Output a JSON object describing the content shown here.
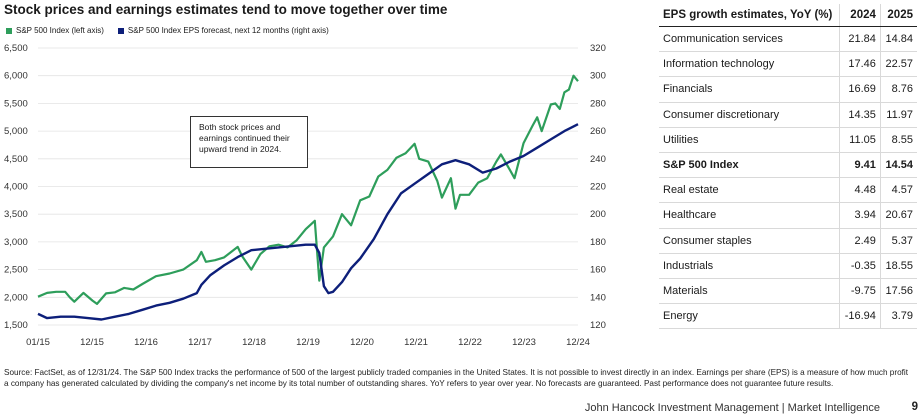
{
  "chart_title": "Stock prices and earnings estimates tend to move together over time",
  "annotation": "Both stock prices and earnings continued their upward trend in 2024.",
  "chart_data": {
    "type": "line",
    "title": "Stock prices and earnings estimates tend to move together over time",
    "x_ticks": [
      "01/15",
      "12/15",
      "12/16",
      "12/17",
      "12/18",
      "12/19",
      "12/20",
      "12/21",
      "12/22",
      "12/23",
      "12/24"
    ],
    "x_range": [
      "2015-01",
      "2024-12"
    ],
    "left_axis": {
      "ticks": [
        "1,500",
        "2,000",
        "2,500",
        "3,000",
        "3,500",
        "4,000",
        "4,500",
        "5,000",
        "5,500",
        "6,000",
        "6,500"
      ],
      "ylim": [
        1500,
        6500
      ]
    },
    "right_axis": {
      "ticks": [
        "120",
        "140",
        "160",
        "180",
        "200",
        "220",
        "240",
        "260",
        "280",
        "300",
        "320"
      ],
      "ylim": [
        120,
        320
      ]
    },
    "legend_position": "top-left",
    "grid": "horizontal",
    "series": [
      {
        "name": "S&P 500 Index (left axis)",
        "axis": "left",
        "color": "#2e9e5b",
        "x": [
          "2015-01",
          "2015-03",
          "2015-05",
          "2015-07",
          "2015-08",
          "2015-09",
          "2015-11",
          "2016-01",
          "2016-02",
          "2016-04",
          "2016-06",
          "2016-08",
          "2016-10",
          "2016-12",
          "2017-03",
          "2017-06",
          "2017-09",
          "2017-12",
          "2018-01",
          "2018-02",
          "2018-04",
          "2018-06",
          "2018-09",
          "2018-10",
          "2018-12",
          "2019-02",
          "2019-04",
          "2019-06",
          "2019-08",
          "2019-10",
          "2019-12",
          "2020-02",
          "2020-03",
          "2020-04",
          "2020-06",
          "2020-08",
          "2020-10",
          "2020-12",
          "2021-02",
          "2021-04",
          "2021-06",
          "2021-08",
          "2021-10",
          "2021-12",
          "2022-01",
          "2022-03",
          "2022-05",
          "2022-06",
          "2022-08",
          "2022-09",
          "2022-10",
          "2022-12",
          "2023-02",
          "2023-04",
          "2023-06",
          "2023-07",
          "2023-09",
          "2023-10",
          "2023-12",
          "2024-02",
          "2024-03",
          "2024-04",
          "2024-06",
          "2024-07",
          "2024-08",
          "2024-09",
          "2024-10",
          "2024-11",
          "2024-12"
        ],
        "values": [
          2010,
          2080,
          2100,
          2100,
          2000,
          1920,
          2080,
          1940,
          1880,
          2070,
          2090,
          2170,
          2140,
          2240,
          2380,
          2430,
          2500,
          2670,
          2820,
          2640,
          2670,
          2720,
          2910,
          2740,
          2500,
          2780,
          2920,
          2950,
          2900,
          3030,
          3230,
          3380,
          2300,
          2900,
          3100,
          3500,
          3300,
          3750,
          3820,
          4180,
          4300,
          4520,
          4600,
          4770,
          4500,
          4450,
          4100,
          3800,
          4150,
          3600,
          3850,
          3850,
          4070,
          4150,
          4450,
          4580,
          4300,
          4150,
          4780,
          5100,
          5250,
          5000,
          5480,
          5500,
          5400,
          5700,
          5750,
          6000,
          5900
        ]
      },
      {
        "name": "S&P 500 Index EPS forecast, next 12 months (right axis)",
        "axis": "right",
        "color": "#0d1f7a",
        "x": [
          "2015-01",
          "2015-03",
          "2015-06",
          "2015-09",
          "2015-12",
          "2016-03",
          "2016-06",
          "2016-09",
          "2016-12",
          "2017-03",
          "2017-06",
          "2017-09",
          "2017-12",
          "2018-01",
          "2018-03",
          "2018-06",
          "2018-09",
          "2018-12",
          "2019-03",
          "2019-06",
          "2019-09",
          "2019-12",
          "2020-02",
          "2020-03",
          "2020-04",
          "2020-05",
          "2020-06",
          "2020-08",
          "2020-10",
          "2020-12",
          "2021-03",
          "2021-06",
          "2021-09",
          "2021-12",
          "2022-03",
          "2022-06",
          "2022-09",
          "2022-12",
          "2023-03",
          "2023-06",
          "2023-09",
          "2023-12",
          "2024-03",
          "2024-06",
          "2024-09",
          "2024-12"
        ],
        "values": [
          128,
          125,
          126,
          126,
          125,
          124,
          126,
          128,
          131,
          134,
          136,
          139,
          143,
          149,
          156,
          163,
          169,
          174,
          175,
          176,
          177,
          178,
          178,
          172,
          148,
          143,
          144,
          151,
          161,
          168,
          182,
          200,
          215,
          222,
          229,
          236,
          239,
          236,
          230,
          233,
          238,
          242,
          248,
          254,
          260,
          265
        ]
      }
    ]
  },
  "table": {
    "header": "EPS growth estimates, YoY (%)",
    "col_2024": "2024",
    "col_2025": "2025",
    "rows": [
      {
        "sector": "Communication services",
        "v2024": "21.84",
        "v2025": "14.84"
      },
      {
        "sector": "Information technology",
        "v2024": "17.46",
        "v2025": "22.57"
      },
      {
        "sector": "Financials",
        "v2024": "16.69",
        "v2025": "8.76"
      },
      {
        "sector": "Consumer discretionary",
        "v2024": "14.35",
        "v2025": "11.97"
      },
      {
        "sector": "Utilities",
        "v2024": "11.05",
        "v2025": "8.55"
      },
      {
        "sector": "S&P 500 Index",
        "v2024": "9.41",
        "v2025": "14.54"
      },
      {
        "sector": "Real estate",
        "v2024": "4.48",
        "v2025": "4.57"
      },
      {
        "sector": "Healthcare",
        "v2024": "3.94",
        "v2025": "20.67"
      },
      {
        "sector": "Consumer staples",
        "v2024": "2.49",
        "v2025": "5.37"
      },
      {
        "sector": "Industrials",
        "v2024": "-0.35",
        "v2025": "18.55"
      },
      {
        "sector": "Materials",
        "v2024": "-9.75",
        "v2025": "17.56"
      },
      {
        "sector": "Energy",
        "v2024": "-16.94",
        "v2025": "3.79"
      }
    ]
  },
  "source": "Source: FactSet, as of 12/31/24. The S&P 500 Index tracks the performance of 500 of the largest publicly traded companies in the United States. It is not possible to invest directly in an index. Earnings per share (EPS) is a measure of how much profit a company has generated calculated by dividing the company's net income by its total number of outstanding shares. YoY refers to year over year. No forecasts are guaranteed. Past performance does not guarantee future results.",
  "footer": "John Hancock Investment Management  |  Market Intelligence",
  "page_number": "9"
}
